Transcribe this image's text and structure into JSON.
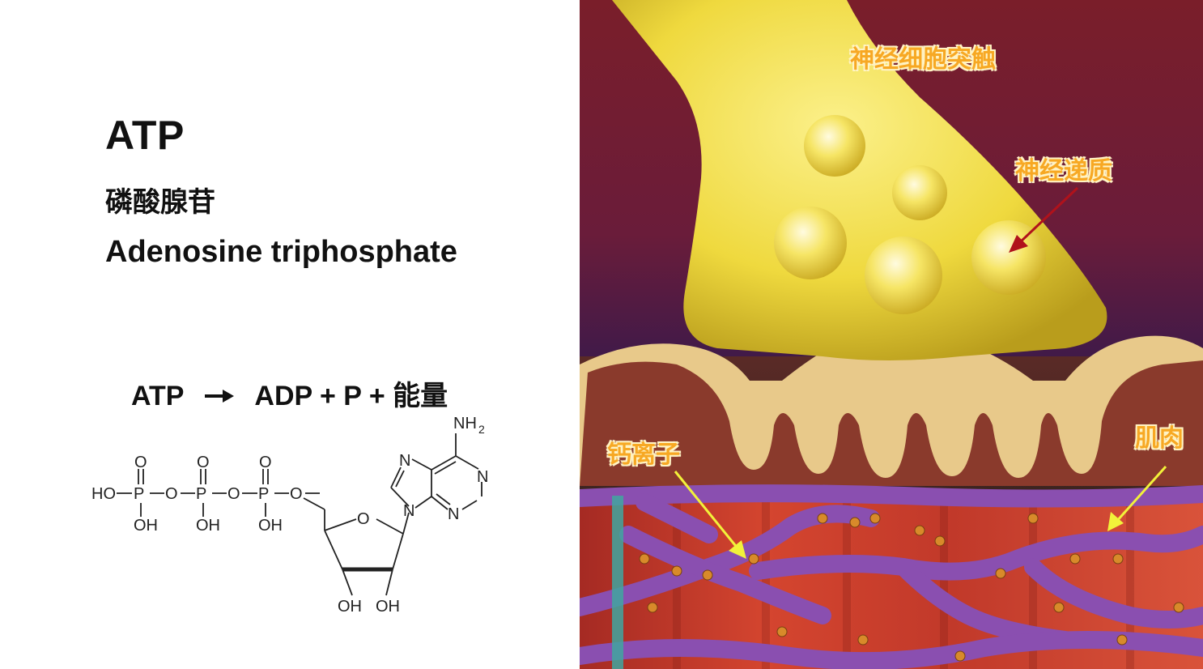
{
  "left_panel": {
    "title": "ATP",
    "chinese_name": "磷酸腺苷",
    "english_name": "Adenosine triphosphate",
    "equation": {
      "reactant": "ATP",
      "arrow_icon": "right-arrow-icon",
      "products": "ADP + P + 能量"
    },
    "molecule": {
      "nh2": "NH",
      "nh2_sub": "2",
      "ho": "HO",
      "oh": "OH",
      "o": "O",
      "p": "P",
      "n": "N"
    }
  },
  "right_panel": {
    "labels": {
      "synapse": "神经细胞突触",
      "neurotransmitter": "神经递质",
      "calcium": "钙离子",
      "muscle": "肌肉"
    },
    "colors": {
      "label_text": "#f7a823",
      "neuron": "#f4e04a",
      "muscle": "#c9392b",
      "membrane": "#8a4fb0",
      "arrow_red": "#b0121b",
      "arrow_yellow": "#f2f23a"
    }
  }
}
